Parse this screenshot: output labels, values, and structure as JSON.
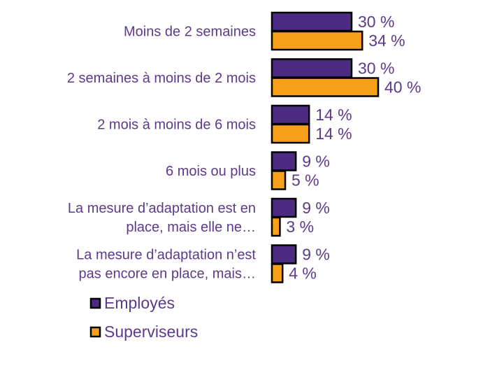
{
  "chart_data": {
    "type": "bar",
    "orientation": "horizontal",
    "title": "",
    "xlabel": "",
    "ylabel": "",
    "xlim": [
      0,
      40
    ],
    "grid": false,
    "legend_placement": "bottom-left",
    "categories": [
      [
        "Moins de 2 semaines"
      ],
      [
        "2 semaines à moins de 2 mois"
      ],
      [
        "2 mois à moins de 6 mois"
      ],
      [
        "6 mois ou plus"
      ],
      [
        "La mesure d’adaptation est en",
        "place, mais elle ne…"
      ],
      [
        "La mesure d’adaptation n’est",
        "pas encore en place, mais…"
      ]
    ],
    "series": [
      {
        "name": "Employés",
        "color": "#4b2a82",
        "values": [
          30,
          30,
          14,
          9,
          9,
          9
        ],
        "labels": [
          "30 %",
          "30 %",
          "14 %",
          "9 %",
          "9 %",
          "9 %"
        ]
      },
      {
        "name": "Superviseurs",
        "color": "#f7a11a",
        "values": [
          34,
          40,
          14,
          5,
          3,
          4
        ],
        "labels": [
          "34 %",
          "40 %",
          "14 %",
          "5 %",
          "3 %",
          "4 %"
        ]
      }
    ],
    "label_color": "#5c3a8c"
  }
}
